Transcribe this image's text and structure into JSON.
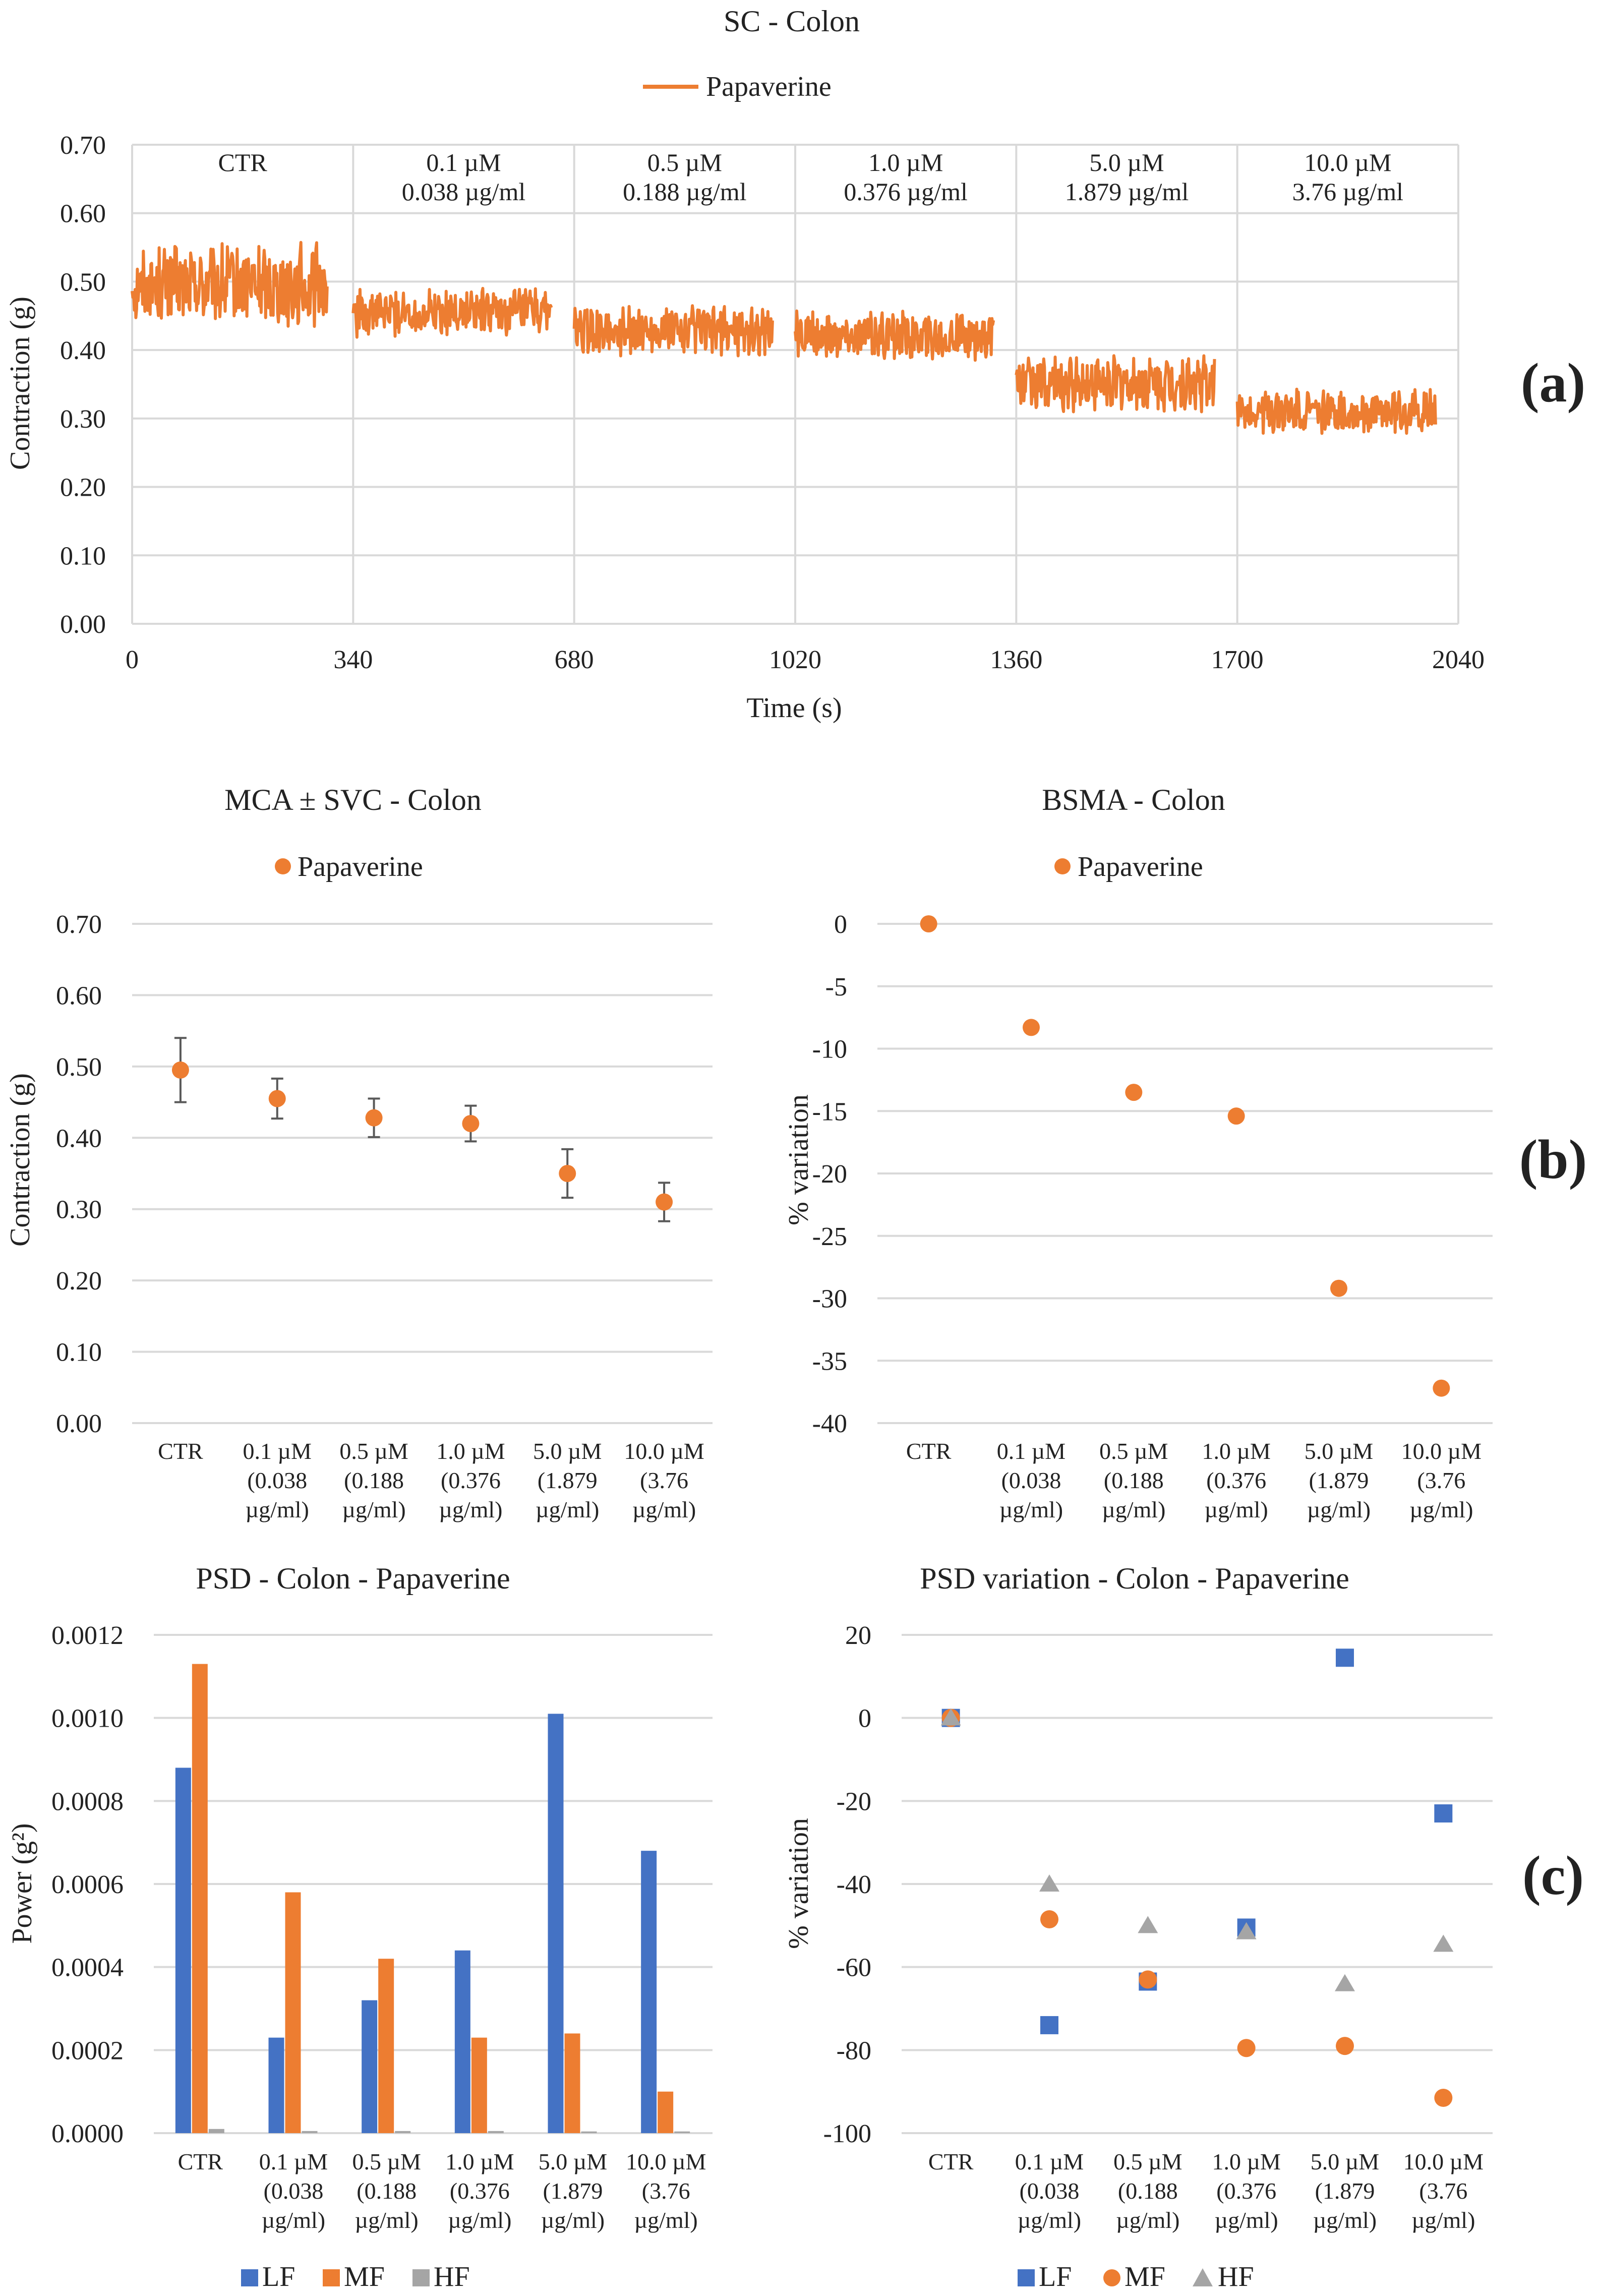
{
  "panel_labels": [
    "(a)",
    "(b)",
    "(c)"
  ],
  "colors": {
    "orange": "#ED7D31",
    "blue": "#4472C4",
    "gray": "#A5A5A5",
    "grid": "#D9D9D9",
    "error_bar": "#595959"
  },
  "category_labels": [
    [
      "CTR"
    ],
    [
      "0.1 µM",
      "(0.038",
      "µg/ml)"
    ],
    [
      "0.5 µM",
      "(0.188",
      "µg/ml)"
    ],
    [
      "1.0 µM",
      "(0.376",
      "µg/ml)"
    ],
    [
      "5.0 µM",
      "(1.879",
      "µg/ml)"
    ],
    [
      "10.0 µM",
      "(3.76",
      "µg/ml)"
    ]
  ],
  "chart_data": [
    {
      "id": "sc",
      "type": "line",
      "title": "SC - Colon",
      "legend": [
        "Papaverine"
      ],
      "xlabel": "Time (s)",
      "ylabel": "Contraction (g)",
      "xlim": [
        0,
        2040
      ],
      "ylim": [
        0,
        0.7
      ],
      "x_ticks": [
        "0",
        "340",
        "680",
        "1020",
        "1360",
        "1700",
        "2040"
      ],
      "y_ticks": [
        "0.00",
        "0.10",
        "0.20",
        "0.30",
        "0.40",
        "0.50",
        "0.60",
        "0.70"
      ],
      "sections": [
        {
          "label": [
            "CTR"
          ],
          "x_start": 0,
          "x_end": 300,
          "mean": 0.495,
          "amplitude": 0.05
        },
        {
          "label": [
            "0.1 µM",
            "0.038 µg/ml"
          ],
          "x_start": 340,
          "x_end": 645,
          "mean": 0.455,
          "amplitude": 0.03
        },
        {
          "label": [
            "0.5 µM",
            "0.188 µg/ml"
          ],
          "x_start": 680,
          "x_end": 985,
          "mean": 0.428,
          "amplitude": 0.03
        },
        {
          "label": [
            "1.0 µM",
            "0.376 µg/ml"
          ],
          "x_start": 1020,
          "x_end": 1325,
          "mean": 0.42,
          "amplitude": 0.03
        },
        {
          "label": [
            "5.0 µM",
            "1.879 µg/ml"
          ],
          "x_start": 1360,
          "x_end": 1665,
          "mean": 0.35,
          "amplitude": 0.035
        },
        {
          "label": [
            "10.0 µM",
            "3.76 µg/ml"
          ],
          "x_start": 1700,
          "x_end": 2005,
          "mean": 0.31,
          "amplitude": 0.028
        }
      ]
    },
    {
      "id": "mca",
      "type": "scatter",
      "title": "MCA ± SVC - Colon",
      "legend": [
        "Papaverine"
      ],
      "ylabel": "Contraction (g)",
      "ylim": [
        0,
        0.7
      ],
      "y_ticks": [
        "0.00",
        "0.10",
        "0.20",
        "0.30",
        "0.40",
        "0.50",
        "0.60",
        "0.70"
      ],
      "values": [
        0.495,
        0.455,
        0.428,
        0.42,
        0.35,
        0.31
      ],
      "errors": [
        0.045,
        0.028,
        0.027,
        0.025,
        0.034,
        0.027
      ]
    },
    {
      "id": "bsma",
      "type": "scatter",
      "title": "BSMA - Colon",
      "legend": [
        "Papaverine"
      ],
      "ylabel": "% variation",
      "ylim": [
        -40,
        0
      ],
      "y_ticks": [
        "-40",
        "-35",
        "-30",
        "-25",
        "-20",
        "-15",
        "-10",
        "-5",
        "0"
      ],
      "values": [
        0,
        -8.3,
        -13.5,
        -15.4,
        -29.2,
        -37.2
      ]
    },
    {
      "id": "psd",
      "type": "bar",
      "title": "PSD - Colon - Papaverine",
      "ylabel": "Power (g²)",
      "ylim": [
        0,
        0.0012
      ],
      "y_ticks": [
        "0.0000",
        "0.0002",
        "0.0004",
        "0.0006",
        "0.0008",
        "0.0010",
        "0.0012"
      ],
      "series": [
        {
          "name": "LF",
          "values": [
            0.00088,
            0.00023,
            0.00032,
            0.00044,
            0.00101,
            0.00068
          ]
        },
        {
          "name": "MF",
          "values": [
            0.00113,
            0.00058,
            0.00042,
            0.00023,
            0.00024,
            0.0001
          ]
        },
        {
          "name": "HF",
          "values": [
            1e-05,
            5e-06,
            5e-06,
            5e-06,
            4e-06,
            4e-06
          ]
        }
      ]
    },
    {
      "id": "psdvar",
      "type": "scatter",
      "title": "PSD variation - Colon - Papaverine",
      "ylabel": "% variation",
      "ylim": [
        -100,
        20
      ],
      "y_ticks": [
        "-100",
        "-80",
        "-60",
        "-40",
        "-20",
        "0",
        "20"
      ],
      "series": [
        {
          "name": "LF",
          "values": [
            0,
            -74,
            -63.5,
            -50.5,
            14.5,
            -23
          ]
        },
        {
          "name": "MF",
          "values": [
            0,
            -48.5,
            -63,
            -79.5,
            -79,
            -91.5
          ]
        },
        {
          "name": "HF",
          "values": [
            0,
            -40,
            -50,
            -51.5,
            -64,
            -54.5
          ]
        }
      ]
    }
  ]
}
